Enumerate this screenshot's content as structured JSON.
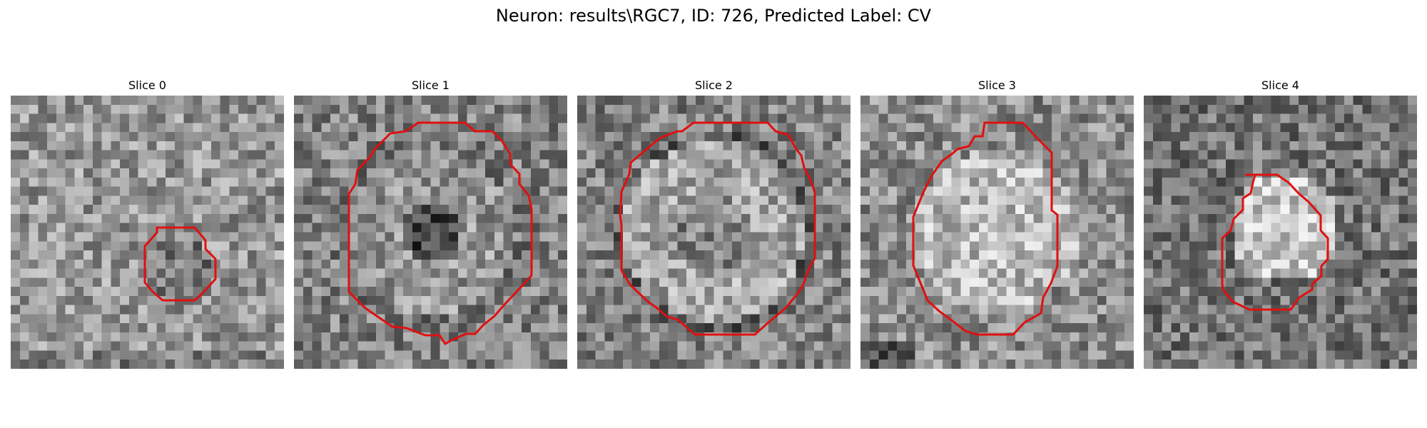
{
  "title": "Neuron: results\\RGC7, ID: 726, Predicted Label: CV",
  "roi_color": "#e01010",
  "slices": [
    {
      "label": "Slice 0",
      "pattern": "noise-darker-center",
      "seed": 11
    },
    {
      "label": "Slice 1",
      "pattern": "ring-dark-center",
      "seed": 23
    },
    {
      "label": "Slice 2",
      "pattern": "ring-mottled",
      "seed": 37
    },
    {
      "label": "Slice 3",
      "pattern": "bright-center",
      "seed": 41
    },
    {
      "label": "Slice 4",
      "pattern": "bright-spot",
      "seed": 53
    }
  ]
}
